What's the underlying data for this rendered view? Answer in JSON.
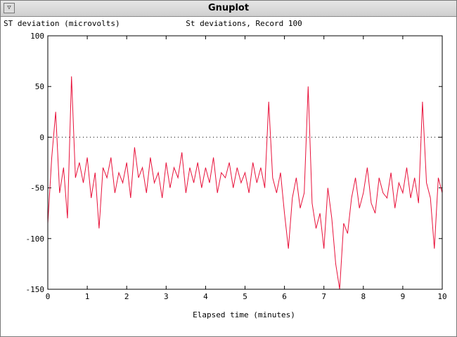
{
  "window": {
    "title": "Gnuplot",
    "menu_button_icon": "triangle-down"
  },
  "chart_data": {
    "type": "line",
    "title": "St deviations, Record 100",
    "ylabel": "ST deviation (microvolts)",
    "xlabel": "Elapsed time (minutes)",
    "xlim": [
      0,
      10
    ],
    "ylim": [
      -150,
      100
    ],
    "xticks": [
      0,
      1,
      2,
      3,
      4,
      5,
      6,
      7,
      8,
      9,
      10
    ],
    "yticks": [
      -150,
      -100,
      -50,
      0,
      50,
      100
    ],
    "zero_line": "dotted",
    "grid": false,
    "line_color": "#e8113a",
    "series": [
      {
        "x": [
          0.0,
          0.1,
          0.2,
          0.3,
          0.4,
          0.5,
          0.6,
          0.7,
          0.8,
          0.9,
          1.0,
          1.1,
          1.2,
          1.3,
          1.4,
          1.5,
          1.6,
          1.7,
          1.8,
          1.9,
          2.0,
          2.1,
          2.2,
          2.3,
          2.4,
          2.5,
          2.6,
          2.7,
          2.8,
          2.9,
          3.0,
          3.1,
          3.2,
          3.3,
          3.4,
          3.5,
          3.6,
          3.7,
          3.8,
          3.9,
          4.0,
          4.1,
          4.2,
          4.3,
          4.4,
          4.5,
          4.6,
          4.7,
          4.8,
          4.9,
          5.0,
          5.1,
          5.2,
          5.3,
          5.4,
          5.5,
          5.6,
          5.7,
          5.8,
          5.9,
          6.0,
          6.1,
          6.2,
          6.3,
          6.4,
          6.5,
          6.6,
          6.7,
          6.8,
          6.9,
          7.0,
          7.1,
          7.2,
          7.3,
          7.4,
          7.5,
          7.6,
          7.7,
          7.8,
          7.9,
          8.0,
          8.1,
          8.2,
          8.3,
          8.4,
          8.5,
          8.6,
          8.7,
          8.8,
          8.9,
          9.0,
          9.1,
          9.2,
          9.3,
          9.4,
          9.5,
          9.6,
          9.7,
          9.8,
          9.9,
          10.0
        ],
        "y": [
          -85,
          -20,
          25,
          -55,
          -30,
          -80,
          60,
          -40,
          -25,
          -45,
          -20,
          -60,
          -35,
          -90,
          -30,
          -40,
          -20,
          -55,
          -35,
          -45,
          -25,
          -60,
          -10,
          -40,
          -30,
          -55,
          -20,
          -45,
          -35,
          -60,
          -25,
          -50,
          -30,
          -40,
          -15,
          -55,
          -30,
          -45,
          -25,
          -50,
          -30,
          -45,
          -20,
          -55,
          -35,
          -40,
          -25,
          -50,
          -30,
          -45,
          -35,
          -55,
          -25,
          -45,
          -30,
          -50,
          35,
          -40,
          -55,
          -35,
          -75,
          -110,
          -60,
          -40,
          -70,
          -55,
          50,
          -65,
          -90,
          -75,
          -110,
          -50,
          -80,
          -125,
          -150,
          -85,
          -95,
          -60,
          -40,
          -70,
          -55,
          -30,
          -65,
          -75,
          -40,
          -55,
          -60,
          -35,
          -70,
          -45,
          -55,
          -30,
          -60,
          -40,
          -65,
          35,
          -45,
          -60,
          -110,
          -40,
          -55
        ]
      }
    ]
  }
}
